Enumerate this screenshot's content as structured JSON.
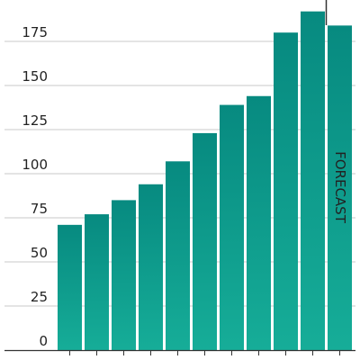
{
  "chart_data": {
    "type": "bar",
    "title": "",
    "xlabel": "",
    "ylabel": "",
    "ylim": [
      0,
      200
    ],
    "yticks": [
      0,
      25,
      50,
      75,
      100,
      125,
      150,
      175
    ],
    "ytick_labels": [
      "0",
      "25",
      "50",
      "75",
      "100",
      "125",
      "150",
      "175"
    ],
    "values": [
      71,
      77,
      85,
      94,
      107,
      123,
      139,
      144,
      180,
      192,
      184
    ],
    "grid": true,
    "bar_color": "#0c9a8c",
    "bar_gradient_top": "#078a80",
    "bar_gradient_bottom": "#16ad98",
    "annotation": "FORECAST",
    "forecast_start_index": 10
  }
}
